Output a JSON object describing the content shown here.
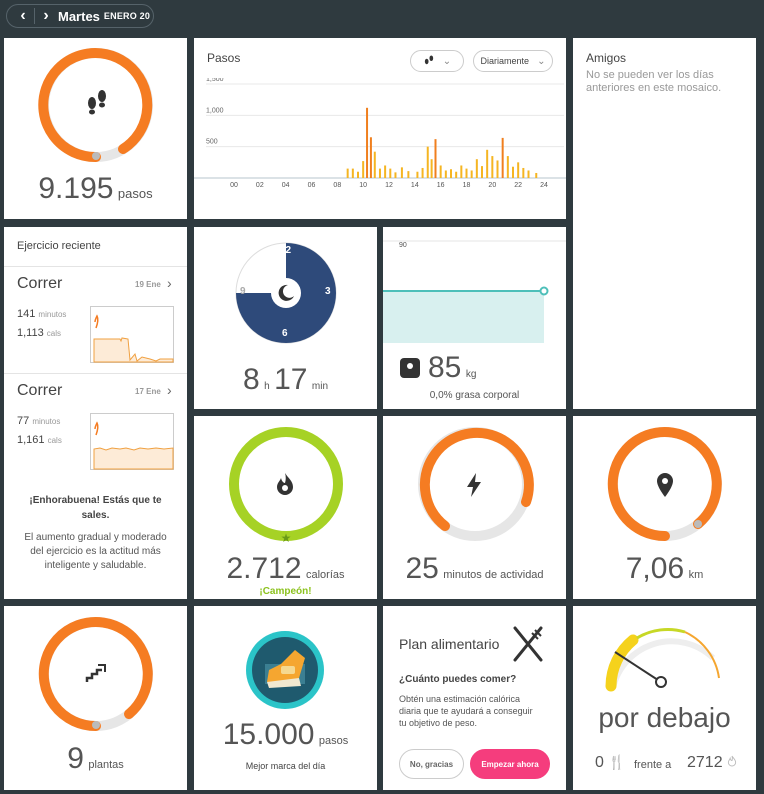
{
  "header": {
    "day": "Martes",
    "date": "ENERO 20"
  },
  "steps_tile": {
    "value": "9.195",
    "unit": "pasos",
    "icon": "footsteps-icon",
    "progress": 0.92
  },
  "steps_chart": {
    "title": "Pasos",
    "filter_icon": "footsteps-icon",
    "period_label": "Diariamente",
    "chart_data": {
      "type": "bar",
      "title": "Pasos",
      "ylim": [
        0,
        1500
      ],
      "yticks": [
        "1,500",
        "1,000",
        "500"
      ],
      "xticks": [
        "00",
        "02",
        "04",
        "06",
        "08",
        "10",
        "12",
        "14",
        "16",
        "18",
        "20",
        "22",
        "24"
      ],
      "bars": [
        {
          "x": 8.8,
          "v": 150
        },
        {
          "x": 9.2,
          "v": 150
        },
        {
          "x": 9.6,
          "v": 100
        },
        {
          "x": 10.0,
          "v": 270
        },
        {
          "x": 10.3,
          "v": 1120
        },
        {
          "x": 10.6,
          "v": 650
        },
        {
          "x": 10.9,
          "v": 420
        },
        {
          "x": 11.3,
          "v": 150
        },
        {
          "x": 11.7,
          "v": 200
        },
        {
          "x": 12.1,
          "v": 150
        },
        {
          "x": 12.5,
          "v": 90
        },
        {
          "x": 13.0,
          "v": 170
        },
        {
          "x": 13.5,
          "v": 110
        },
        {
          "x": 14.2,
          "v": 100
        },
        {
          "x": 14.6,
          "v": 160
        },
        {
          "x": 15.0,
          "v": 500
        },
        {
          "x": 15.3,
          "v": 300
        },
        {
          "x": 15.6,
          "v": 620
        },
        {
          "x": 16.0,
          "v": 200
        },
        {
          "x": 16.4,
          "v": 120
        },
        {
          "x": 16.8,
          "v": 140
        },
        {
          "x": 17.2,
          "v": 100
        },
        {
          "x": 17.6,
          "v": 200
        },
        {
          "x": 18.0,
          "v": 150
        },
        {
          "x": 18.4,
          "v": 120
        },
        {
          "x": 18.8,
          "v": 300
        },
        {
          "x": 19.2,
          "v": 190
        },
        {
          "x": 19.6,
          "v": 450
        },
        {
          "x": 20.0,
          "v": 350
        },
        {
          "x": 20.4,
          "v": 280
        },
        {
          "x": 20.8,
          "v": 640
        },
        {
          "x": 21.2,
          "v": 350
        },
        {
          "x": 21.6,
          "v": 180
        },
        {
          "x": 22.0,
          "v": 250
        },
        {
          "x": 22.4,
          "v": 160
        },
        {
          "x": 22.8,
          "v": 120
        },
        {
          "x": 23.4,
          "v": 80
        }
      ],
      "highlight_color": "#f07f1e",
      "bar_color": "#f5b522"
    }
  },
  "friends": {
    "title": "Amigos",
    "message": "No se pueden ver los días anteriores en este mosaico."
  },
  "exercise": {
    "title": "Ejercicio reciente",
    "items": [
      {
        "name": "Correr",
        "date": "19 Ene",
        "minutes": "141",
        "minutes_unit": "minutos",
        "cals": "1,113",
        "cals_unit": "cals"
      },
      {
        "name": "Correr",
        "date": "17 Ene",
        "minutes": "77",
        "minutes_unit": "minutos",
        "cals": "1,161",
        "cals_unit": "cals"
      }
    ],
    "congrats_title": "¡Enhorabuena! Estás que te sales.",
    "congrats_body": "El aumento gradual y moderado del ejercicio es la actitud más inteligente y saludable."
  },
  "sleep": {
    "hours": "8",
    "hours_unit": "h",
    "minutes": "17",
    "minutes_unit": "min",
    "dial": [
      "12",
      "3",
      "6",
      "9"
    ],
    "icon": "moon-icon"
  },
  "weight": {
    "value": "85",
    "unit": "kg",
    "y_labels": [
      "90",
      "85"
    ],
    "body_fat": "0,0% grasa corporal",
    "icon": "scale-icon"
  },
  "calories": {
    "value": "2.712",
    "unit": "calorías",
    "badge": "¡Campeón!",
    "icon": "flame-icon",
    "color": "#a6d225"
  },
  "active": {
    "value": "25",
    "unit": "minutos de actividad",
    "icon": "lightning-icon",
    "progress": 0.83
  },
  "distance": {
    "value": "7,06",
    "unit": "km",
    "icon": "location-pin-icon",
    "progress": 0.87
  },
  "floors": {
    "value": "9",
    "unit": "plantas",
    "icon": "stairs-icon",
    "progress": 0.87
  },
  "badge": {
    "value": "15.000",
    "unit": "pasos",
    "caption": "Mejor marca del día",
    "icon": "sneaker-badge-icon"
  },
  "food": {
    "title": "Plan alimentario",
    "question": "¿Cuánto puedes comer?",
    "body": "Obtén una estimación calórica diaria que te ayudará a conseguir tu objetivo de peso.",
    "decline_label": "No, gracias",
    "start_label": "Empezar ahora",
    "icon": "fork-knife-icon"
  },
  "balance": {
    "status": "por debajo",
    "eaten": "0",
    "versus": "frente a",
    "burned": "2712",
    "eaten_icon": "fork-knife-icon",
    "burned_icon": "flame-icon"
  },
  "colors": {
    "orange": "#f57c22",
    "track": "#e6e6e6",
    "navy": "#2e4a7a",
    "teal": "#4dbfb9",
    "pink": "#f53d7d",
    "lime": "#a6d225"
  }
}
